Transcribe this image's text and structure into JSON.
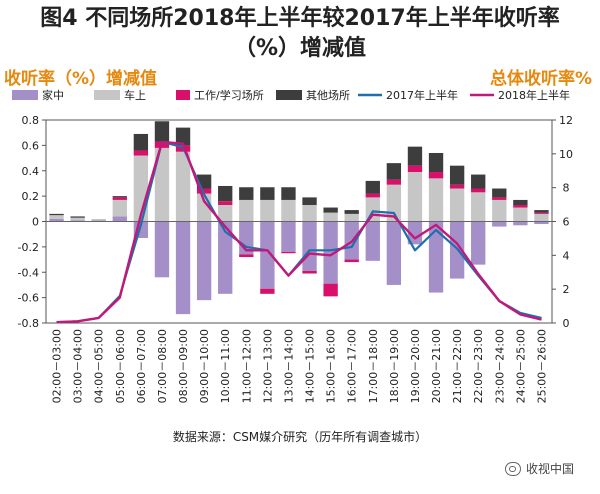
{
  "title_line1": "图4 不同场所2018年上半年较2017年上半年收听率",
  "title_line2": "（%）增减值",
  "left_axis_title": "收听率（%）增减值",
  "right_axis_title": "总体收听率%",
  "source": "数据来源：CSM媒介研究（历年所有调查城市）",
  "watermark": "收视中国",
  "colors": {
    "home": "#a58fc9",
    "car": "#c6c6c6",
    "work": "#d9106a",
    "other": "#3d3d3d",
    "y2017": "#1f6fae",
    "y2018": "#c2187a"
  },
  "chart_data": {
    "type": "bar",
    "categories": [
      "02:00－03:00",
      "03:00－04:00",
      "04:00－05:00",
      "05:00－06:00",
      "06:00－07:00",
      "07:00－08:00",
      "08:00－09:00",
      "09:00－10:00",
      "10:00－11:00",
      "11:00－12:00",
      "12:00－13:00",
      "13:00－14:00",
      "14:00－15:00",
      "15:00－16:00",
      "16:00－17:00",
      "17:00－18:00",
      "18:00－19:00",
      "19:00－20:00",
      "20:00－21:00",
      "21:00－22:00",
      "22:00－23:00",
      "23:00－24:00",
      "24:00－25:00",
      "25:00－26:00"
    ],
    "ylim": [
      -0.8,
      0.8
    ],
    "yticks": [
      "0.8",
      "0.6",
      "0.4",
      "0.2",
      "0",
      "-0.2",
      "-0.4",
      "-0.6",
      "-0.8"
    ],
    "y2lim": [
      0,
      12
    ],
    "y2ticks": [
      "12",
      "10",
      "8",
      "6",
      "4",
      "2",
      "0"
    ],
    "series": [
      {
        "name": "家中",
        "kind": "bar",
        "values": [
          0.02,
          0.01,
          0.01,
          0.04,
          -0.13,
          -0.44,
          -0.73,
          -0.62,
          -0.57,
          -0.26,
          -0.53,
          -0.24,
          -0.39,
          -0.49,
          -0.3,
          -0.31,
          -0.5,
          -0.18,
          -0.56,
          -0.45,
          -0.34,
          -0.04,
          -0.03,
          -0.02
        ]
      },
      {
        "name": "车上",
        "kind": "bar",
        "values": [
          0.03,
          0.02,
          0.01,
          0.13,
          0.52,
          0.58,
          0.55,
          0.22,
          0.13,
          0.17,
          0.17,
          0.17,
          0.13,
          0.07,
          0.06,
          0.19,
          0.29,
          0.39,
          0.34,
          0.26,
          0.23,
          0.17,
          0.11,
          0.06
        ]
      },
      {
        "name": "工作/学习场所",
        "kind": "bar",
        "values": [
          0,
          0,
          0,
          0.02,
          0.04,
          0.05,
          0.05,
          0.04,
          0.03,
          -0.02,
          -0.04,
          -0.01,
          -0.02,
          -0.1,
          -0.02,
          0.03,
          0.04,
          0.05,
          0.05,
          0.03,
          0.03,
          0.02,
          0.02,
          0.01
        ]
      },
      {
        "name": "其他场所",
        "kind": "bar",
        "values": [
          0.01,
          0.01,
          0,
          0.01,
          0.13,
          0.16,
          0.14,
          0.11,
          0.12,
          0.1,
          0.1,
          0.1,
          0.06,
          0.04,
          0.03,
          0.1,
          0.13,
          0.15,
          0.15,
          0.15,
          0.11,
          0.07,
          0.04,
          0.02
        ]
      },
      {
        "name": "2017年上半年",
        "kind": "line",
        "axis": "right",
        "values": [
          0.05,
          0.1,
          0.3,
          1.6,
          5.8,
          10.7,
          10.4,
          7.6,
          5.4,
          4.5,
          4.3,
          2.8,
          4.3,
          4.3,
          4.5,
          6.6,
          6.5,
          4.3,
          5.5,
          4.4,
          2.8,
          1.3,
          0.6,
          0.3
        ]
      },
      {
        "name": "2018年上半年",
        "kind": "line",
        "axis": "right",
        "values": [
          0.05,
          0.1,
          0.3,
          1.5,
          6.4,
          10.7,
          10.6,
          7.2,
          5.7,
          4.3,
          4.3,
          2.8,
          4.1,
          4.0,
          4.8,
          6.4,
          6.3,
          5.0,
          5.8,
          4.7,
          2.9,
          1.3,
          0.5,
          0.2
        ]
      }
    ]
  }
}
